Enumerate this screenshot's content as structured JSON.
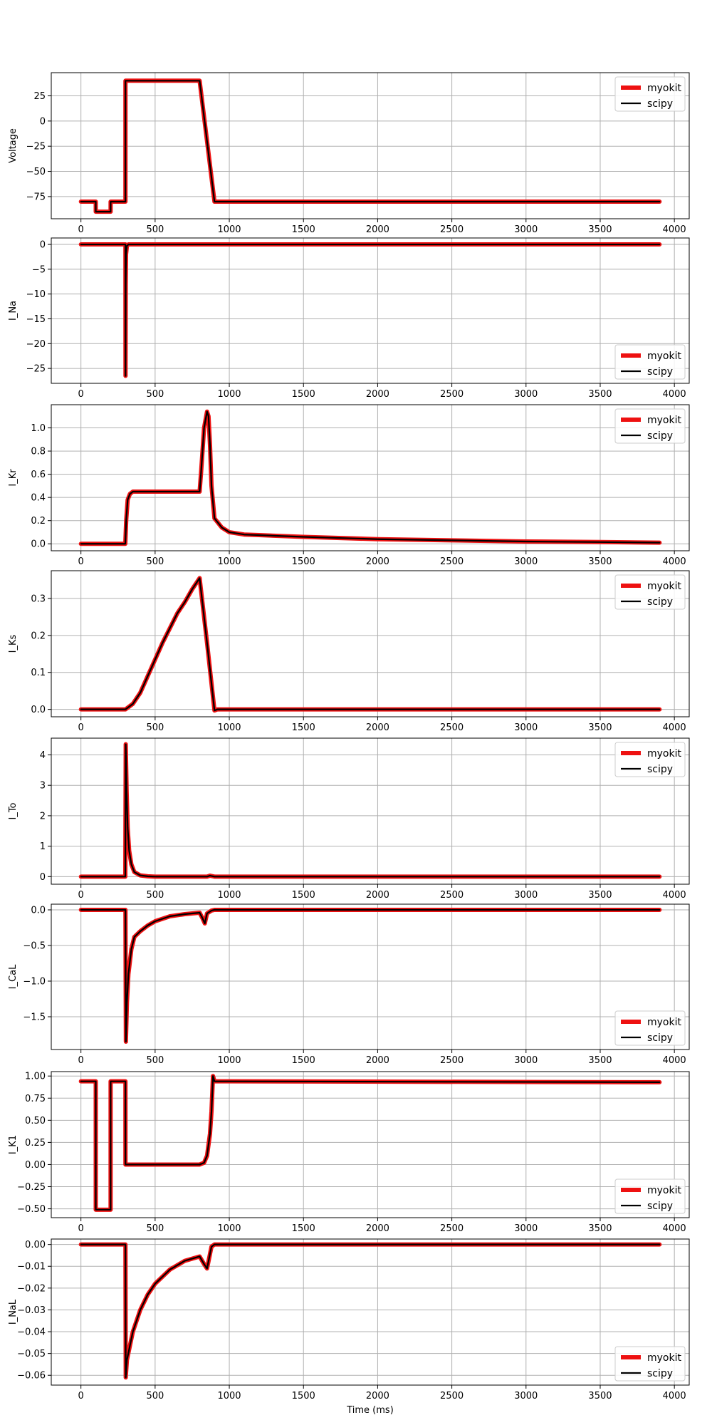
{
  "chart_data": [
    {
      "type": "line",
      "ylabel": "Voltage",
      "xlabel": "",
      "xlim": [
        -200,
        4100
      ],
      "ylim": [
        -97,
        48
      ],
      "xticks": [
        0,
        500,
        1000,
        1500,
        2000,
        2500,
        3000,
        3500,
        4000
      ],
      "yticks": [
        -75,
        -50,
        -25,
        0,
        25
      ],
      "grid": true,
      "legend_position": "upper-right",
      "series": [
        {
          "name": "myokit",
          "color": "#ee1111",
          "x": [
            0,
            99.9,
            100,
            200,
            200.1,
            300,
            300.1,
            800,
            900,
            3900
          ],
          "y": [
            -80,
            -80,
            -90,
            -90,
            -80,
            -80,
            40,
            40,
            -80,
            -80
          ]
        },
        {
          "name": "scipy",
          "color": "#000000",
          "x": [
            0,
            99.9,
            100,
            200,
            200.1,
            300,
            300.1,
            800,
            900,
            3900
          ],
          "y": [
            -80,
            -80,
            -90,
            -90,
            -80,
            -80,
            40,
            40,
            -80,
            -80
          ]
        }
      ]
    },
    {
      "type": "line",
      "ylabel": "I_Na",
      "xlabel": "",
      "xlim": [
        -200,
        4100
      ],
      "ylim": [
        -28,
        1.3
      ],
      "xticks": [
        0,
        500,
        1000,
        1500,
        2000,
        2500,
        3000,
        3500,
        4000
      ],
      "yticks": [
        -25,
        -20,
        -15,
        -10,
        -5,
        0
      ],
      "grid": true,
      "legend_position": "lower-right",
      "series": [
        {
          "name": "myokit",
          "color": "#ee1111",
          "x": [
            0,
            300,
            300.5,
            302,
            304,
            310,
            320,
            3900
          ],
          "y": [
            0,
            0,
            -26.5,
            -8,
            -2,
            -0.3,
            0,
            0
          ]
        },
        {
          "name": "scipy",
          "color": "#000000",
          "x": [
            0,
            300,
            300.5,
            302,
            304,
            310,
            320,
            3900
          ],
          "y": [
            0,
            0,
            -26.5,
            -8,
            -2,
            -0.3,
            0,
            0
          ]
        }
      ]
    },
    {
      "type": "line",
      "ylabel": "I_Kr",
      "xlabel": "",
      "xlim": [
        -200,
        4100
      ],
      "ylim": [
        -0.06,
        1.2
      ],
      "xticks": [
        0,
        500,
        1000,
        1500,
        2000,
        2500,
        3000,
        3500,
        4000
      ],
      "yticks": [
        0.0,
        0.2,
        0.4,
        0.6,
        0.8,
        1.0
      ],
      "grid": true,
      "legend_position": "upper-right",
      "series": [
        {
          "name": "myokit",
          "color": "#ee1111",
          "x": [
            0,
            299,
            305,
            315,
            330,
            350,
            400,
            800,
            810,
            830,
            850,
            860,
            870,
            880,
            900,
            950,
            1000,
            1100,
            1200,
            1500,
            2000,
            2500,
            3000,
            3500,
            3900
          ],
          "y": [
            0,
            0,
            0.2,
            0.38,
            0.43,
            0.45,
            0.45,
            0.45,
            0.62,
            1.0,
            1.14,
            1.1,
            0.85,
            0.5,
            0.22,
            0.14,
            0.1,
            0.08,
            0.075,
            0.06,
            0.04,
            0.03,
            0.02,
            0.015,
            0.01
          ]
        },
        {
          "name": "scipy",
          "color": "#000000",
          "x": [
            0,
            299,
            305,
            315,
            330,
            350,
            400,
            800,
            810,
            830,
            850,
            860,
            870,
            880,
            900,
            950,
            1000,
            1100,
            1200,
            1500,
            2000,
            2500,
            3000,
            3500,
            3900
          ],
          "y": [
            0,
            0,
            0.2,
            0.38,
            0.43,
            0.45,
            0.45,
            0.45,
            0.62,
            1.0,
            1.14,
            1.1,
            0.85,
            0.5,
            0.22,
            0.14,
            0.1,
            0.08,
            0.075,
            0.06,
            0.04,
            0.03,
            0.02,
            0.015,
            0.01
          ]
        }
      ]
    },
    {
      "type": "line",
      "ylabel": "I_Ks",
      "xlabel": "",
      "xlim": [
        -200,
        4100
      ],
      "ylim": [
        -0.02,
        0.375
      ],
      "xticks": [
        0,
        500,
        1000,
        1500,
        2000,
        2500,
        3000,
        3500,
        4000
      ],
      "yticks": [
        0.0,
        0.1,
        0.2,
        0.3
      ],
      "grid": true,
      "legend_position": "upper-right",
      "series": [
        {
          "name": "myokit",
          "color": "#ee1111",
          "x": [
            0,
            300,
            350,
            400,
            450,
            500,
            550,
            600,
            650,
            700,
            750,
            800,
            850,
            900,
            920,
            1000,
            3900
          ],
          "y": [
            0,
            0,
            0.015,
            0.045,
            0.09,
            0.135,
            0.18,
            0.22,
            0.26,
            0.29,
            0.325,
            0.355,
            0.18,
            -0.003,
            0,
            0,
            0
          ]
        },
        {
          "name": "scipy",
          "color": "#000000",
          "x": [
            0,
            300,
            350,
            400,
            450,
            500,
            550,
            600,
            650,
            700,
            750,
            800,
            850,
            900,
            920,
            1000,
            3900
          ],
          "y": [
            0,
            0,
            0.015,
            0.045,
            0.09,
            0.135,
            0.18,
            0.22,
            0.26,
            0.29,
            0.325,
            0.355,
            0.18,
            -0.003,
            0,
            0,
            0
          ]
        }
      ]
    },
    {
      "type": "line",
      "ylabel": "I_To",
      "xlabel": "",
      "xlim": [
        -200,
        4100
      ],
      "ylim": [
        -0.25,
        4.55
      ],
      "xticks": [
        0,
        500,
        1000,
        1500,
        2000,
        2500,
        3000,
        3500,
        4000
      ],
      "yticks": [
        0,
        1,
        2,
        3,
        4
      ],
      "grid": true,
      "legend_position": "upper-right",
      "series": [
        {
          "name": "myokit",
          "color": "#ee1111",
          "x": [
            0,
            299,
            302,
            308,
            315,
            325,
            340,
            360,
            400,
            450,
            500,
            850,
            870,
            900,
            3900
          ],
          "y": [
            0,
            0,
            4.35,
            2.8,
            1.6,
            0.85,
            0.4,
            0.15,
            0.04,
            0.01,
            0,
            0,
            0.03,
            0,
            0
          ]
        },
        {
          "name": "scipy",
          "color": "#000000",
          "x": [
            0,
            299,
            302,
            308,
            315,
            325,
            340,
            360,
            400,
            450,
            500,
            850,
            870,
            900,
            3900
          ],
          "y": [
            0,
            0,
            4.35,
            2.8,
            1.6,
            0.85,
            0.4,
            0.15,
            0.04,
            0.01,
            0,
            0,
            0.03,
            0,
            0
          ]
        }
      ]
    },
    {
      "type": "line",
      "ylabel": "I_CaL",
      "xlabel": "",
      "xlim": [
        -200,
        4100
      ],
      "ylim": [
        -1.96,
        0.08
      ],
      "xticks": [
        0,
        500,
        1000,
        1500,
        2000,
        2500,
        3000,
        3500,
        4000
      ],
      "yticks": [
        -1.5,
        -1.0,
        -0.5,
        0.0
      ],
      "grid": true,
      "legend_position": "lower-right",
      "series": [
        {
          "name": "myokit",
          "color": "#ee1111",
          "x": [
            0,
            300,
            303,
            310,
            320,
            340,
            360,
            400,
            450,
            500,
            600,
            700,
            800,
            820,
            835,
            850,
            880,
            900,
            3900
          ],
          "y": [
            0,
            0,
            -1.85,
            -1.3,
            -0.9,
            -0.55,
            -0.38,
            -0.3,
            -0.22,
            -0.16,
            -0.09,
            -0.06,
            -0.04,
            -0.12,
            -0.19,
            -0.05,
            -0.01,
            0,
            0
          ]
        },
        {
          "name": "scipy",
          "color": "#000000",
          "x": [
            0,
            300,
            303,
            310,
            320,
            340,
            360,
            400,
            450,
            500,
            600,
            700,
            800,
            820,
            835,
            850,
            880,
            900,
            3900
          ],
          "y": [
            0,
            0,
            -1.85,
            -1.3,
            -0.9,
            -0.55,
            -0.38,
            -0.3,
            -0.22,
            -0.16,
            -0.09,
            -0.06,
            -0.04,
            -0.12,
            -0.19,
            -0.05,
            -0.01,
            0,
            0
          ]
        }
      ]
    },
    {
      "type": "line",
      "ylabel": "I_K1",
      "xlabel": "",
      "xlim": [
        -200,
        4100
      ],
      "ylim": [
        -0.6,
        1.05
      ],
      "xticks": [
        0,
        500,
        1000,
        1500,
        2000,
        2500,
        3000,
        3500,
        4000
      ],
      "yticks": [
        -0.5,
        -0.25,
        0.0,
        0.25,
        0.5,
        0.75,
        1.0
      ],
      "grid": true,
      "legend_position": "lower-right",
      "series": [
        {
          "name": "myokit",
          "color": "#ee1111",
          "x": [
            0,
            99.9,
            100,
            200,
            200.1,
            300,
            300.1,
            800,
            830,
            850,
            870,
            880,
            890,
            900,
            1000,
            3900
          ],
          "y": [
            0.94,
            0.94,
            -0.51,
            -0.51,
            0.94,
            0.94,
            0.0,
            0.0,
            0.02,
            0.1,
            0.35,
            0.6,
            1.0,
            0.94,
            0.94,
            0.93
          ]
        },
        {
          "name": "scipy",
          "color": "#000000",
          "x": [
            0,
            99.9,
            100,
            200,
            200.1,
            300,
            300.1,
            800,
            830,
            850,
            870,
            880,
            890,
            900,
            1000,
            3900
          ],
          "y": [
            0.94,
            0.94,
            -0.51,
            -0.51,
            0.94,
            0.94,
            0.0,
            0.0,
            0.02,
            0.1,
            0.35,
            0.6,
            1.0,
            0.94,
            0.94,
            0.93
          ]
        }
      ]
    },
    {
      "type": "line",
      "ylabel": "I_NaL",
      "xlabel": "Time (ms)",
      "xlim": [
        -200,
        4100
      ],
      "ylim": [
        -0.0645,
        0.0025
      ],
      "xticks": [
        0,
        500,
        1000,
        1500,
        2000,
        2500,
        3000,
        3500,
        4000
      ],
      "yticks": [
        -0.06,
        -0.05,
        -0.04,
        -0.03,
        -0.02,
        -0.01,
        0.0
      ],
      "grid": true,
      "legend_position": "lower-right",
      "series": [
        {
          "name": "myokit",
          "color": "#ee1111",
          "x": [
            0,
            100,
            200,
            300,
            302,
            310,
            350,
            400,
            450,
            500,
            600,
            700,
            800,
            830,
            850,
            880,
            900,
            3900
          ],
          "y": [
            0,
            0,
            0,
            0,
            -0.061,
            -0.053,
            -0.04,
            -0.03,
            -0.023,
            -0.018,
            -0.0115,
            -0.0075,
            -0.0055,
            -0.009,
            -0.011,
            -0.001,
            0,
            0
          ]
        },
        {
          "name": "scipy",
          "color": "#000000",
          "x": [
            0,
            100,
            200,
            300,
            302,
            310,
            350,
            400,
            450,
            500,
            600,
            700,
            800,
            830,
            850,
            880,
            900,
            3900
          ],
          "y": [
            0,
            0,
            0,
            0,
            -0.061,
            -0.053,
            -0.04,
            -0.03,
            -0.023,
            -0.018,
            -0.0115,
            -0.0075,
            -0.0055,
            -0.009,
            -0.011,
            -0.001,
            0,
            0
          ]
        }
      ]
    }
  ]
}
